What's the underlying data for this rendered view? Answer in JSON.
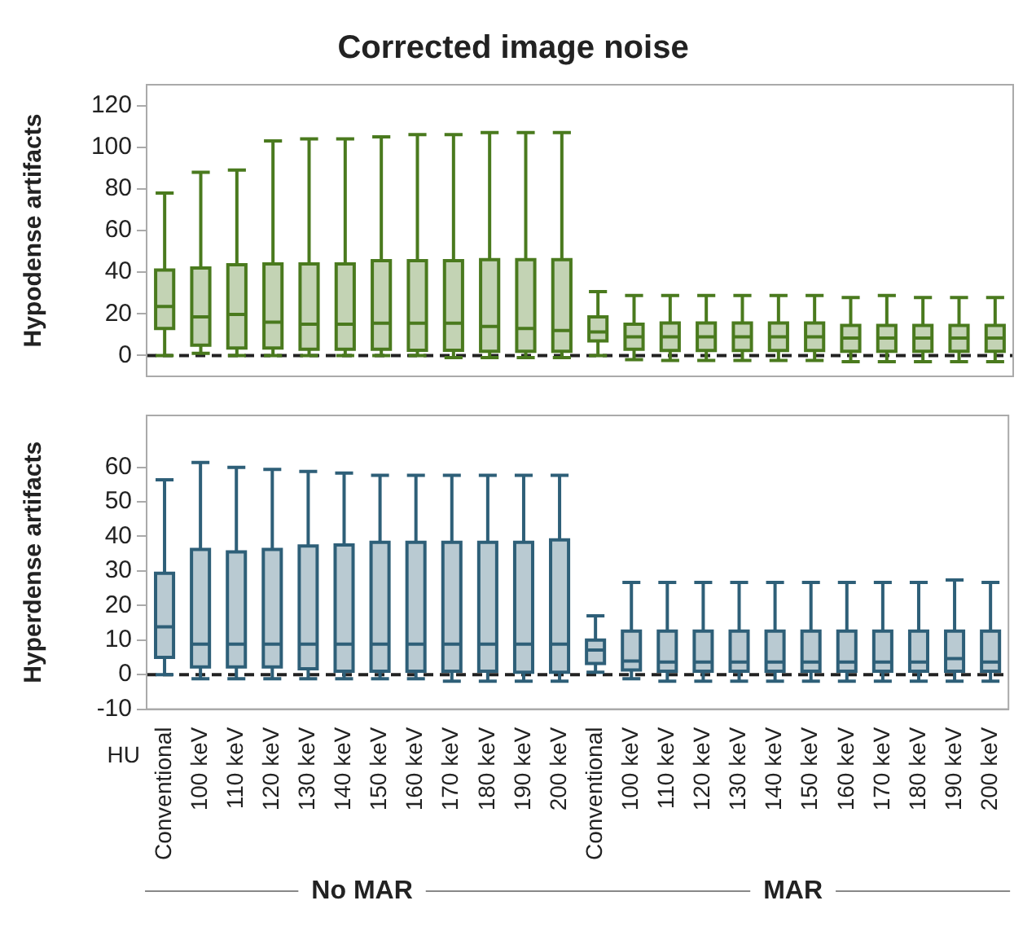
{
  "chart_data": [
    {
      "type": "box",
      "title": "Corrected image noise",
      "ylabel": "Hypodense artifacts",
      "tick_labels": "y",
      "ylim": [
        -10,
        130
      ],
      "yticks": [
        0,
        20,
        40,
        60,
        80,
        100,
        120
      ],
      "ref_lines": [
        {
          "axis": "y",
          "value": 0,
          "line_style": "dashed",
          "color": "#222222"
        }
      ],
      "series": [
        {
          "color": "#4a7a1e",
          "boxes": [
            {
              "low": 0,
              "q1": 13,
              "median": 23.5,
              "q3": 41,
              "high": 78
            },
            {
              "low": 1,
              "q1": 5,
              "median": 18.5,
              "q3": 42,
              "high": 88
            },
            {
              "low": 0,
              "q1": 3.6,
              "median": 19.7,
              "q3": 43.6,
              "high": 89
            },
            {
              "low": 0,
              "q1": 3.6,
              "median": 16,
              "q3": 44,
              "high": 103
            },
            {
              "low": 0,
              "q1": 3,
              "median": 15,
              "q3": 44,
              "high": 104
            },
            {
              "low": 0,
              "q1": 3,
              "median": 15,
              "q3": 44,
              "high": 104
            },
            {
              "low": 0,
              "q1": 3,
              "median": 15.5,
              "q3": 45.5,
              "high": 105
            },
            {
              "low": 0,
              "q1": 2.5,
              "median": 15.5,
              "q3": 45.5,
              "high": 106
            },
            {
              "low": -1,
              "q1": 2.5,
              "median": 15.5,
              "q3": 45.5,
              "high": 106
            },
            {
              "low": -1,
              "q1": 2,
              "median": 14,
              "q3": 46,
              "high": 107
            },
            {
              "low": -1,
              "q1": 2,
              "median": 13,
              "q3": 46,
              "high": 107
            },
            {
              "low": -1,
              "q1": 2,
              "median": 12,
              "q3": 46,
              "high": 107
            },
            {
              "low": 0,
              "q1": 7,
              "median": 11.3,
              "q3": 18.5,
              "high": 30.7
            },
            {
              "low": -2,
              "q1": 3,
              "median": 9,
              "q3": 15,
              "high": 28.8
            },
            {
              "low": -2.4,
              "q1": 2.4,
              "median": 9,
              "q3": 15.6,
              "high": 28.8
            },
            {
              "low": -2.4,
              "q1": 2.4,
              "median": 9,
              "q3": 15.6,
              "high": 28.8
            },
            {
              "low": -2.4,
              "q1": 2.4,
              "median": 9,
              "q3": 15.6,
              "high": 28.8
            },
            {
              "low": -2.4,
              "q1": 2.4,
              "median": 9,
              "q3": 15.6,
              "high": 28.8
            },
            {
              "low": -2.4,
              "q1": 2.4,
              "median": 9,
              "q3": 15.6,
              "high": 28.8
            },
            {
              "low": -3,
              "q1": 2,
              "median": 8.4,
              "q3": 14.4,
              "high": 27.8
            },
            {
              "low": -3,
              "q1": 2,
              "median": 8.4,
              "q3": 14.4,
              "high": 28.8
            },
            {
              "low": -3,
              "q1": 2,
              "median": 8.4,
              "q3": 14.4,
              "high": 27.8
            },
            {
              "low": -3,
              "q1": 2,
              "median": 8.4,
              "q3": 14.4,
              "high": 27.8
            },
            {
              "low": -3,
              "q1": 2,
              "median": 8.4,
              "q3": 14.4,
              "high": 27.8
            }
          ]
        }
      ]
    },
    {
      "type": "box",
      "ylabel": "Hyperdense artifacts",
      "xlabel": "HU",
      "annotations": [
        "No MAR",
        "MAR"
      ],
      "categories": [
        "Conventional",
        "100 keV",
        "110 keV",
        "120 keV",
        "130 keV",
        "140 keV",
        "150 keV",
        "160 keV",
        "170 keV",
        "180 keV",
        "190 keV",
        "200 keV",
        "Conventional",
        "100 keV",
        "110 keV",
        "120 keV",
        "130 keV",
        "140 keV",
        "150 keV",
        "160 keV",
        "170 keV",
        "180 keV",
        "190 keV",
        "200 keV"
      ],
      "ylim": [
        -10,
        75
      ],
      "yticks": [
        -10,
        0,
        10,
        20,
        30,
        40,
        50,
        60
      ],
      "ref_lines": [
        {
          "axis": "y",
          "value": 0,
          "line_style": "dashed",
          "color": "#222222"
        }
      ],
      "series": [
        {
          "color": "#2e5f78",
          "boxes": [
            {
              "low": 0,
              "q1": 5,
              "median": 13.8,
              "q3": 29.3,
              "high": 56.4
            },
            {
              "low": -1.2,
              "q1": 2.2,
              "median": 8.8,
              "q3": 36.2,
              "high": 61.4
            },
            {
              "low": -1.2,
              "q1": 2.2,
              "median": 8.8,
              "q3": 35.5,
              "high": 60
            },
            {
              "low": -1.2,
              "q1": 2.2,
              "median": 8.8,
              "q3": 36.2,
              "high": 59.4
            },
            {
              "low": -1.2,
              "q1": 1.7,
              "median": 8.8,
              "q3": 37.2,
              "high": 58.8
            },
            {
              "low": -1.2,
              "q1": 1,
              "median": 8.8,
              "q3": 37.5,
              "high": 58.3
            },
            {
              "low": -1.2,
              "q1": 1,
              "median": 8.8,
              "q3": 38.3,
              "high": 57.7
            },
            {
              "low": -1.2,
              "q1": 1,
              "median": 8.8,
              "q3": 38.3,
              "high": 57.7
            },
            {
              "low": -1.9,
              "q1": 1,
              "median": 8.8,
              "q3": 38.3,
              "high": 57.7
            },
            {
              "low": -1.9,
              "q1": 1,
              "median": 8.8,
              "q3": 38.3,
              "high": 57.7
            },
            {
              "low": -1.9,
              "q1": 0.7,
              "median": 8.8,
              "q3": 38.3,
              "high": 57.7
            },
            {
              "low": -1.9,
              "q1": 0.7,
              "median": 8.8,
              "q3": 39,
              "high": 57.7
            },
            {
              "low": 0.7,
              "q1": 3.2,
              "median": 7.1,
              "q3": 10,
              "high": 17
            },
            {
              "low": -1.2,
              "q1": 1.3,
              "median": 3.9,
              "q3": 12.6,
              "high": 26.7
            },
            {
              "low": -1.9,
              "q1": 1,
              "median": 3.6,
              "q3": 12.6,
              "high": 26.7
            },
            {
              "low": -1.9,
              "q1": 1,
              "median": 3.6,
              "q3": 12.6,
              "high": 26.7
            },
            {
              "low": -1.9,
              "q1": 1,
              "median": 3.6,
              "q3": 12.6,
              "high": 26.7
            },
            {
              "low": -1.9,
              "q1": 1,
              "median": 3.6,
              "q3": 12.6,
              "high": 26.7
            },
            {
              "low": -1.9,
              "q1": 1,
              "median": 3.6,
              "q3": 12.6,
              "high": 26.7
            },
            {
              "low": -1.9,
              "q1": 1,
              "median": 3.6,
              "q3": 12.6,
              "high": 26.7
            },
            {
              "low": -1.9,
              "q1": 1,
              "median": 3.6,
              "q3": 12.6,
              "high": 26.7
            },
            {
              "low": -1.9,
              "q1": 1,
              "median": 3.6,
              "q3": 12.6,
              "high": 26.7
            },
            {
              "low": -1.9,
              "q1": 1,
              "median": 4.6,
              "q3": 12.6,
              "high": 27.4
            },
            {
              "low": -1.9,
              "q1": 1,
              "median": 3.6,
              "q3": 12.6,
              "high": 26.7
            }
          ]
        }
      ]
    }
  ]
}
